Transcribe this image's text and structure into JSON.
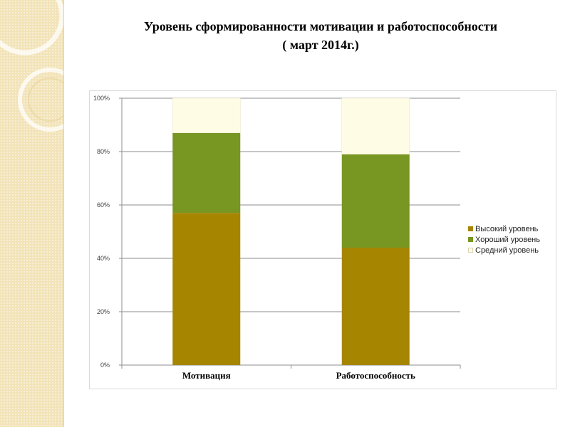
{
  "title": {
    "line1": "Уровень сформированности мотивации и работоспособности",
    "line2": "( март 2014г.)"
  },
  "chart_data": {
    "type": "bar",
    "stacked": "percent",
    "categories": [
      "Мотивация",
      "Работоспособность"
    ],
    "series": [
      {
        "name": "Высокий уровень",
        "values": [
          57,
          44
        ],
        "color": "#a68500"
      },
      {
        "name": "Хороший уровень",
        "values": [
          30,
          35
        ],
        "color": "#779622"
      },
      {
        "name": "Средний уровень",
        "values": [
          13,
          21
        ],
        "color": "#fffce6"
      }
    ],
    "y_ticks": [
      "0%",
      "20%",
      "40%",
      "60%",
      "80%",
      "100%"
    ],
    "ylim": [
      0,
      100
    ],
    "grid": true,
    "legend_position": "right"
  }
}
